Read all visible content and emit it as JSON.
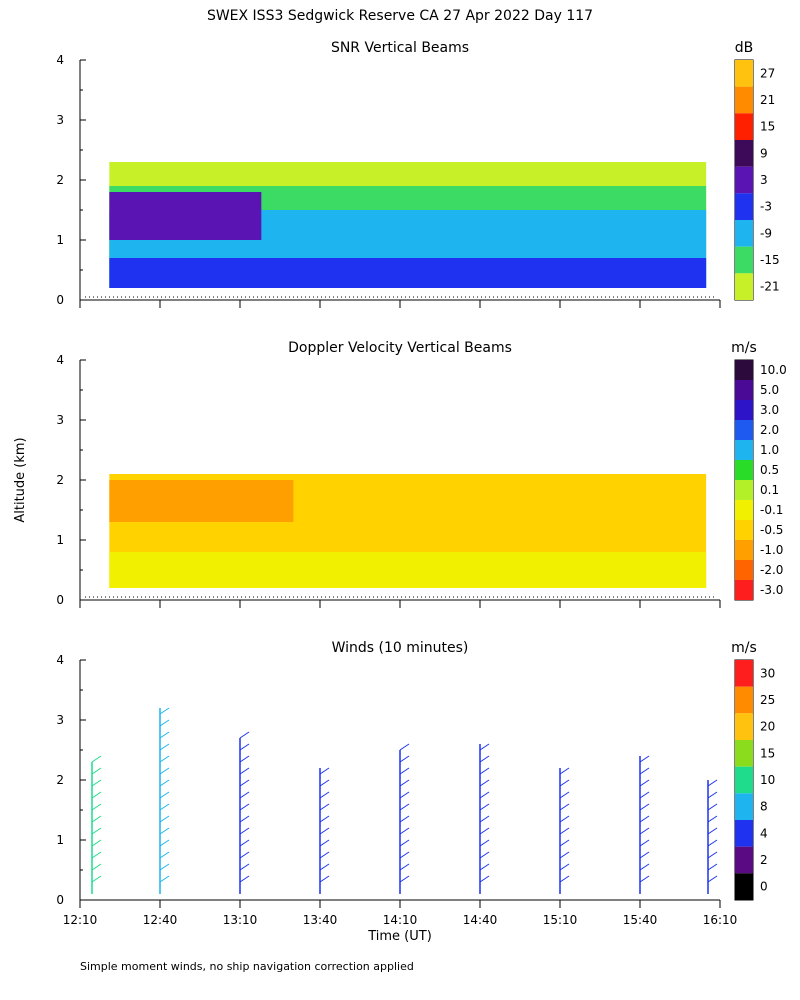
{
  "figure": {
    "title": "SWEX ISS3 Sedgwick Reserve CA  27 Apr 2022 Day 117",
    "ylabel": "Altitude (km)",
    "xlabel": "Time (UT)",
    "footnote": "Simple moment winds, no ship navigation correction applied"
  },
  "chart_data": [
    {
      "type": "heatmap",
      "title": "SNR Vertical Beams",
      "units": "dB",
      "ylim": [
        0,
        4
      ],
      "yticks": [
        "0",
        "1",
        "2",
        "3",
        "4"
      ],
      "colorbar": {
        "labels": [
          "27",
          "21",
          "15",
          "9",
          "3",
          "-3",
          "-9",
          "-15",
          "-21"
        ],
        "colors": [
          "#ffc20e",
          "#ff8c00",
          "#ff2000",
          "#3d0a5a",
          "#5a14b4",
          "#1e32f0",
          "#1eb4f0",
          "#3cdc64",
          "#c8f028"
        ]
      },
      "layers": [
        {
          "value": "-21",
          "color": "#c8f028",
          "x": [
            12.35,
            16.08
          ],
          "y": [
            0.2,
            2.3
          ]
        },
        {
          "value": "-15",
          "color": "#3cdc64",
          "x": [
            12.35,
            16.08
          ],
          "y": [
            0.2,
            1.9
          ]
        },
        {
          "value": "-9",
          "color": "#1eb4f0",
          "x": [
            12.35,
            16.08
          ],
          "y": [
            0.2,
            1.5
          ]
        },
        {
          "value": "-3",
          "color": "#1e32f0",
          "x": [
            12.35,
            16.08
          ],
          "y": [
            0.2,
            0.7
          ]
        },
        {
          "value": "3",
          "color": "#5a14b4",
          "x": [
            12.35,
            13.3
          ],
          "y": [
            1.0,
            1.8
          ]
        }
      ]
    },
    {
      "type": "heatmap",
      "title": "Doppler Velocity Vertical Beams",
      "units": "m/s",
      "ylim": [
        0,
        4
      ],
      "yticks": [
        "0",
        "1",
        "2",
        "3",
        "4"
      ],
      "colorbar": {
        "labels": [
          "10.0",
          "5.0",
          "3.0",
          "2.0",
          "1.0",
          "0.5",
          "0.1",
          "-0.1",
          "-0.5",
          "-1.0",
          "-2.0",
          "-3.0"
        ],
        "colors": [
          "#2d0a3c",
          "#4b0a96",
          "#2d14c8",
          "#1e5af0",
          "#1eb4f0",
          "#28dc28",
          "#b4f028",
          "#f0f000",
          "#ffd200",
          "#ffa000",
          "#ff6400",
          "#ff1e1e"
        ]
      },
      "layers": [
        {
          "value": "-0.5",
          "color": "#ffd200",
          "x": [
            12.35,
            16.08
          ],
          "y": [
            0.2,
            2.1
          ]
        },
        {
          "value": "-0.1",
          "color": "#f0f000",
          "x": [
            12.35,
            16.08
          ],
          "y": [
            0.2,
            0.8
          ]
        },
        {
          "value": "-1.0",
          "color": "#ffa000",
          "x": [
            12.35,
            13.5
          ],
          "y": [
            1.3,
            2.0
          ]
        }
      ]
    },
    {
      "type": "barbs",
      "title": "Winds (10 minutes)",
      "units": "m/s",
      "ylim": [
        0,
        4
      ],
      "yticks": [
        "0",
        "1",
        "2",
        "3",
        "4"
      ],
      "xticks": [
        "12:10",
        "12:40",
        "13:10",
        "13:40",
        "14:10",
        "14:40",
        "15:10",
        "15:40",
        "16:10"
      ],
      "colorbar": {
        "labels": [
          "30",
          "25",
          "20",
          "15",
          "10",
          "8",
          "4",
          "2",
          "0"
        ],
        "colors": [
          "#ff1e1e",
          "#ff8c00",
          "#ffc20e",
          "#8cdc1e",
          "#1edc8c",
          "#1eb4f0",
          "#1e32f0",
          "#5a0a82",
          "#000000"
        ]
      },
      "profiles": [
        {
          "time": "12:10",
          "top_km": 2.3,
          "speed_ms": 10
        },
        {
          "time": "12:40",
          "top_km": 3.2,
          "speed_ms": 8
        },
        {
          "time": "13:10",
          "top_km": 2.7,
          "speed_ms": 4
        },
        {
          "time": "13:40",
          "top_km": 2.2,
          "speed_ms": 4
        },
        {
          "time": "14:10",
          "top_km": 2.5,
          "speed_ms": 4
        },
        {
          "time": "14:40",
          "top_km": 2.6,
          "speed_ms": 4
        },
        {
          "time": "15:10",
          "top_km": 2.2,
          "speed_ms": 4
        },
        {
          "time": "15:40",
          "top_km": 2.4,
          "speed_ms": 4
        },
        {
          "time": "16:10",
          "top_km": 2.0,
          "speed_ms": 4
        }
      ]
    }
  ]
}
